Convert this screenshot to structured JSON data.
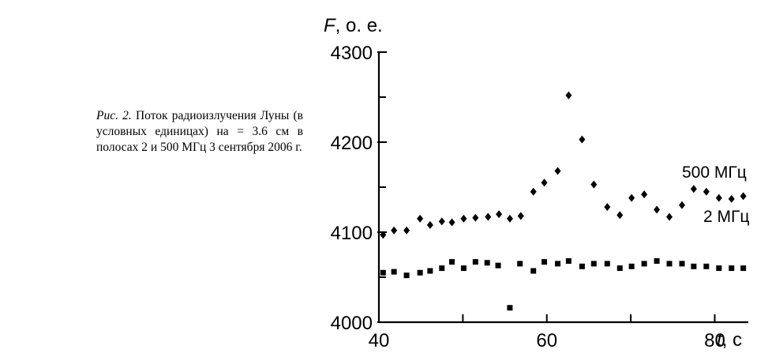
{
  "caption": {
    "label": "Рис. 2.",
    "text": " Поток радиоизлучения Луны (в условных единицах) на   = 3.6 см в полосах 2 и 500 МГц 3 сентября 2006 г."
  },
  "chart_data": {
    "type": "scatter",
    "ylabel": "F, о. е.",
    "xlabel": "t, с",
    "xlim": [
      40,
      84
    ],
    "ylim": [
      4000,
      4300
    ],
    "xticks": [
      40,
      60,
      80
    ],
    "yticks": [
      4000,
      4100,
      4200,
      4300
    ],
    "grid": false,
    "series": [
      {
        "name": "500 МГц",
        "marker": "diamond",
        "color": "#000000",
        "x": [
          40.5,
          41.8,
          43.3,
          44.9,
          46.1,
          47.5,
          48.7,
          50.1,
          51.5,
          53.0,
          54.3,
          55.6,
          56.9,
          58.4,
          59.7,
          61.3,
          62.6,
          64.2,
          65.6,
          67.2,
          68.7,
          70.1,
          71.6,
          73.1,
          74.6,
          76.1,
          77.5,
          79.0,
          80.5,
          82.0,
          83.4
        ],
        "y": [
          4097,
          4102,
          4102,
          4115,
          4108,
          4112,
          4111,
          4115,
          4116,
          4117,
          4120,
          4115,
          4118,
          4145,
          4155,
          4168,
          4252,
          4203,
          4153,
          4128,
          4119,
          4138,
          4142,
          4125,
          4117,
          4130,
          4148,
          4145,
          4138,
          4137,
          4140
        ]
      },
      {
        "name": "2 МГц",
        "marker": "square",
        "color": "#000000",
        "x": [
          40.5,
          41.8,
          43.3,
          44.9,
          46.1,
          47.5,
          48.7,
          50.1,
          51.5,
          52.9,
          54.2,
          55.6,
          56.8,
          58.4,
          59.7,
          61.3,
          62.6,
          64.2,
          65.6,
          67.2,
          68.7,
          70.1,
          71.6,
          73.1,
          74.6,
          76.1,
          77.5,
          79.0,
          80.5,
          82.0,
          83.4
        ],
        "y": [
          4055,
          4056,
          4052,
          4055,
          4057,
          4060,
          4067,
          4060,
          4067,
          4066,
          4063,
          4016,
          4065,
          4057,
          4067,
          4065,
          4068,
          4062,
          4065,
          4065,
          4060,
          4062,
          4065,
          4068,
          4065,
          4065,
          4062,
          4062,
          4060,
          4060,
          4060
        ]
      }
    ]
  }
}
